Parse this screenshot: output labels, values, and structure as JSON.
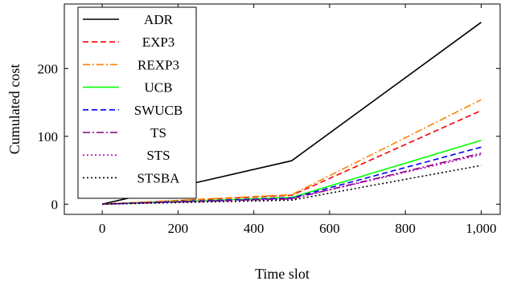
{
  "chart_data": {
    "type": "line",
    "xlabel": "Time slot",
    "ylabel": "Cumulated cost",
    "xlim": [
      -100,
      1050
    ],
    "ylim": [
      -15,
      295
    ],
    "xticks": [
      0,
      200,
      400,
      600,
      800,
      1000
    ],
    "xtick_labels": [
      "0",
      "200",
      "400",
      "600",
      "800",
      "1,000"
    ],
    "yticks": [
      0,
      100,
      200
    ],
    "ytick_labels": [
      "0",
      "100",
      "200"
    ],
    "grid": false,
    "legend_position": "top-left",
    "series": [
      {
        "name": "ADR",
        "color": "#000000",
        "dash": "solid",
        "x": [
          0,
          500,
          1000
        ],
        "y": [
          0,
          64,
          268
        ]
      },
      {
        "name": "EXP3",
        "color": "#ff0000",
        "dash": "dashed",
        "x": [
          0,
          500,
          1000
        ],
        "y": [
          0,
          13,
          138
        ]
      },
      {
        "name": "REXP3",
        "color": "#ff8000",
        "dash": "dashdot",
        "x": [
          0,
          500,
          1000
        ],
        "y": [
          0,
          14,
          154
        ]
      },
      {
        "name": "UCB",
        "color": "#00ff00",
        "dash": "solid",
        "x": [
          0,
          500,
          1000
        ],
        "y": [
          0,
          10,
          94
        ]
      },
      {
        "name": "SWUCB",
        "color": "#0000ff",
        "dash": "dashed",
        "x": [
          0,
          500,
          1000
        ],
        "y": [
          0,
          9,
          84
        ]
      },
      {
        "name": "TS",
        "color": "#800080",
        "dash": "dashdot",
        "x": [
          0,
          500,
          1000
        ],
        "y": [
          0,
          8,
          75
        ]
      },
      {
        "name": "STS",
        "color": "#bf00bf",
        "dash": "dotted",
        "x": [
          0,
          500,
          1000
        ],
        "y": [
          0,
          8,
          73
        ]
      },
      {
        "name": "STSBA",
        "color": "#000000",
        "dash": "dotted",
        "x": [
          0,
          500,
          1000
        ],
        "y": [
          0,
          6,
          57
        ]
      }
    ]
  }
}
